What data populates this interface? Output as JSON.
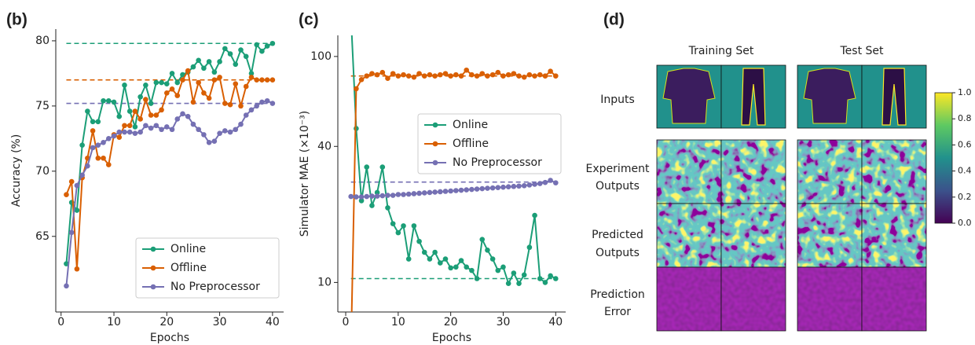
{
  "chart_data": [
    {
      "type": "line",
      "panel_label": "(b)",
      "xlabel": "Epochs",
      "ylabel": "Accuracy (%)",
      "xlim": [
        -1,
        42.1
      ],
      "ylim": [
        59.2,
        80.9
      ],
      "xticks": [
        0,
        10,
        20,
        30,
        40
      ],
      "yticks": [
        65,
        70,
        75,
        80
      ],
      "yscale": "linear",
      "legend": "lower right",
      "x": [
        1,
        2,
        3,
        4,
        5,
        6,
        7,
        8,
        9,
        10,
        11,
        12,
        13,
        14,
        15,
        16,
        17,
        18,
        19,
        20,
        21,
        22,
        23,
        24,
        25,
        26,
        27,
        28,
        29,
        30,
        31,
        32,
        33,
        34,
        35,
        36,
        37,
        38,
        39,
        40
      ],
      "series": [
        {
          "name": "Online",
          "color": "#1b9e77",
          "hline": 79.8,
          "values": [
            62.9,
            67.6,
            67.0,
            72.0,
            74.6,
            73.8,
            73.8,
            75.4,
            75.4,
            75.3,
            74.2,
            76.6,
            74.6,
            73.4,
            75.7,
            76.6,
            75.2,
            76.8,
            76.8,
            76.7,
            77.5,
            76.8,
            77.4,
            77.6,
            78.0,
            78.5,
            77.9,
            78.4,
            77.6,
            78.4,
            79.4,
            79.0,
            78.2,
            79.3,
            78.8,
            77.5,
            79.7,
            79.2,
            79.6,
            79.8
          ]
        },
        {
          "name": "Offline",
          "color": "#d95f02",
          "hline": 77.0,
          "values": [
            68.2,
            69.2,
            62.5,
            69.5,
            71.0,
            73.1,
            71.0,
            71.0,
            70.5,
            72.8,
            72.6,
            73.5,
            73.5,
            74.6,
            74.0,
            75.5,
            74.3,
            74.3,
            74.7,
            76.0,
            76.3,
            75.8,
            77.0,
            77.7,
            75.3,
            76.8,
            76.0,
            75.6,
            77.0,
            77.2,
            75.2,
            75.1,
            76.7,
            75.0,
            76.5,
            77.2,
            77.0,
            77.0,
            77.0,
            77.0
          ]
        },
        {
          "name": "No Preprocessor",
          "color": "#7570b3",
          "hline": 75.2,
          "values": [
            61.2,
            65.3,
            68.9,
            69.7,
            70.4,
            71.8,
            72.0,
            72.2,
            72.5,
            72.7,
            73.0,
            73.0,
            73.0,
            72.9,
            73.0,
            73.5,
            73.3,
            73.5,
            73.2,
            73.4,
            73.2,
            74.0,
            74.4,
            74.2,
            73.6,
            73.2,
            72.8,
            72.2,
            72.3,
            72.9,
            73.1,
            73.0,
            73.2,
            73.6,
            74.3,
            74.7,
            75.0,
            75.3,
            75.4,
            75.2
          ]
        }
      ]
    },
    {
      "type": "line",
      "panel_label": "(c)",
      "xlabel": "Epochs",
      "ylabel": "Simulator MAE (×10⁻³)",
      "xlim": [
        -1.5,
        41.9
      ],
      "ylim": [
        7.4,
        124
      ],
      "xticks": [
        0,
        10,
        20,
        30,
        40
      ],
      "yticks": [
        10,
        40,
        100
      ],
      "yscale": "log",
      "legend": "center right",
      "x": [
        1,
        2,
        3,
        4,
        5,
        6,
        7,
        8,
        9,
        10,
        11,
        12,
        13,
        14,
        15,
        16,
        17,
        18,
        19,
        20,
        21,
        22,
        23,
        24,
        25,
        26,
        27,
        28,
        29,
        30,
        31,
        32,
        33,
        34,
        35,
        36,
        37,
        38,
        39,
        40
      ],
      "series": [
        {
          "name": "Online",
          "color": "#1b9e77",
          "hline": 10.4,
          "values": [
            150,
            48,
            23,
            32.4,
            21.9,
            25,
            32.4,
            21.4,
            18.2,
            16.6,
            17.8,
            12.7,
            17.8,
            15.2,
            13.6,
            12.7,
            13.6,
            12.2,
            12.7,
            11.6,
            11.7,
            12.5,
            11.7,
            11.3,
            10.4,
            15.5,
            13.9,
            12.7,
            11.3,
            11.7,
            9.9,
            11.0,
            9.9,
            10.8,
            14.3,
            19.8,
            10.4,
            10.0,
            10.7,
            10.4
          ]
        },
        {
          "name": "Offline",
          "color": "#d95f02",
          "hline": 82,
          "values": [
            5,
            72,
            79,
            82,
            84,
            83,
            85,
            80,
            84,
            82,
            83,
            82,
            81,
            84,
            82,
            83,
            82,
            83,
            84,
            82,
            83,
            82,
            87,
            83,
            82,
            84,
            82,
            83,
            85,
            82,
            83,
            84,
            82,
            81,
            83,
            82,
            83,
            82,
            86,
            82
          ]
        },
        {
          "name": "No Preprocessor",
          "color": "#7570b3",
          "hline": 27.8,
          "values": [
            24.0,
            23.9,
            23.9,
            24.0,
            24.1,
            24.1,
            24.2,
            24.3,
            24.3,
            24.5,
            24.5,
            24.6,
            24.7,
            24.8,
            24.9,
            25.0,
            25.1,
            25.2,
            25.3,
            25.4,
            25.5,
            25.6,
            25.7,
            25.8,
            25.9,
            26.0,
            26.1,
            26.2,
            26.3,
            26.4,
            26.5,
            26.6,
            26.7,
            26.8,
            27.0,
            27.2,
            27.4,
            27.7,
            28.3,
            27.6
          ]
        }
      ]
    }
  ],
  "panel_d": {
    "panel_label": "(d)",
    "columns": [
      "Training Set",
      "Test Set"
    ],
    "rows": [
      [
        "Inputs"
      ],
      [
        "Experiment",
        "Outputs"
      ],
      [
        "Predicted",
        "Outputs"
      ],
      [
        "Prediction",
        "Error"
      ]
    ],
    "colorbar": {
      "range": [
        0,
        1
      ],
      "ticks": [
        {
          "value": 0,
          "label": "0.0"
        },
        0.2,
        0.4,
        0.6,
        0.8,
        {
          "value": 1,
          "label": "1.0"
        }
      ]
    }
  }
}
